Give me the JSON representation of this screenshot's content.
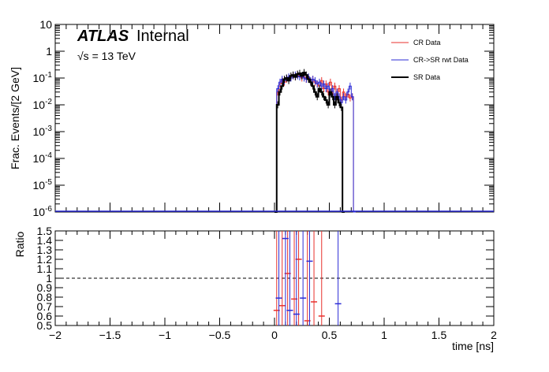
{
  "chart_data": [
    {
      "type": "line",
      "panel": "main",
      "ylabel": "Frac. Events/[2 GeV]",
      "yscale": "log",
      "ylim": [
        1e-06,
        10
      ],
      "xlim": [
        -2,
        2
      ],
      "yticks": [
        {
          "b": "10",
          "e": "-6",
          "v": 1e-06
        },
        {
          "b": "10",
          "e": "-5",
          "v": 1e-05
        },
        {
          "b": "10",
          "e": "-4",
          "v": 0.0001
        },
        {
          "b": "10",
          "e": "-3",
          "v": 0.001
        },
        {
          "b": "10",
          "e": "-2",
          "v": 0.01
        },
        {
          "b": "10",
          "e": "-1",
          "v": 0.1
        },
        {
          "b": "1",
          "e": "",
          "v": 1
        },
        {
          "b": "10",
          "e": "",
          "v": 10
        }
      ],
      "atlas_label": "ATLAS",
      "atlas_sub": "Internal",
      "energy_sqrt": "√s",
      "energy_rest": " = 13 TeV",
      "legend": [
        {
          "label": "CR Data",
          "color": "#e8302c"
        },
        {
          "label": "CR->SR rwt Data",
          "color": "#2b2bd6"
        },
        {
          "label": "SR Data",
          "color": "#000000"
        }
      ],
      "series": [
        {
          "name": "CR Data",
          "color": "#e8302c",
          "x": [
            0.0,
            0.02,
            0.04,
            0.06,
            0.08,
            0.1,
            0.12,
            0.14,
            0.16,
            0.18,
            0.2,
            0.22,
            0.24,
            0.26,
            0.28,
            0.3,
            0.32,
            0.34,
            0.36,
            0.38,
            0.4,
            0.42,
            0.44,
            0.46,
            0.48,
            0.5,
            0.52,
            0.54,
            0.56,
            0.58,
            0.6,
            0.62,
            0.64,
            0.66,
            0.68,
            0.7,
            0.72
          ],
          "y": [
            1e-06,
            0.03,
            0.06,
            0.08,
            0.07,
            0.09,
            0.1,
            0.11,
            0.12,
            0.11,
            0.13,
            0.12,
            0.1,
            0.11,
            0.09,
            0.1,
            0.08,
            0.09,
            0.07,
            0.06,
            0.05,
            0.08,
            0.04,
            0.06,
            0.03,
            0.07,
            0.025,
            0.05,
            0.02,
            0.04,
            0.015,
            0.03,
            0.02,
            0.025,
            0.018,
            0.02,
            1e-06
          ]
        },
        {
          "name": "CR->SR rwt Data",
          "color": "#2b2bd6",
          "x": [
            0.0,
            0.02,
            0.04,
            0.06,
            0.08,
            0.1,
            0.12,
            0.14,
            0.16,
            0.18,
            0.2,
            0.22,
            0.24,
            0.26,
            0.28,
            0.3,
            0.32,
            0.34,
            0.36,
            0.38,
            0.4,
            0.42,
            0.44,
            0.46,
            0.48,
            0.5,
            0.52,
            0.54,
            0.56,
            0.58,
            0.6,
            0.62,
            0.64,
            0.66,
            0.68,
            0.7,
            0.72
          ],
          "y": [
            1e-06,
            0.04,
            0.07,
            0.09,
            0.08,
            0.1,
            0.11,
            0.1,
            0.12,
            0.13,
            0.12,
            0.11,
            0.12,
            0.1,
            0.09,
            0.11,
            0.08,
            0.09,
            0.08,
            0.06,
            0.07,
            0.05,
            0.06,
            0.04,
            0.05,
            0.03,
            0.04,
            0.02,
            0.03,
            0.02,
            0.012,
            0.02,
            0.015,
            0.03,
            0.05,
            0.02,
            1e-06
          ]
        },
        {
          "name": "SR Data",
          "color": "#000000",
          "x": [
            0.0,
            0.02,
            0.04,
            0.06,
            0.08,
            0.1,
            0.12,
            0.14,
            0.16,
            0.18,
            0.2,
            0.22,
            0.24,
            0.26,
            0.28,
            0.3,
            0.32,
            0.34,
            0.36,
            0.38,
            0.4,
            0.42,
            0.44,
            0.46,
            0.48,
            0.5,
            0.52,
            0.54,
            0.56,
            0.58,
            0.6,
            0.62
          ],
          "y": [
            1e-06,
            0.01,
            0.03,
            0.05,
            0.09,
            0.1,
            0.08,
            0.12,
            0.13,
            0.11,
            0.14,
            0.15,
            0.12,
            0.16,
            0.13,
            0.09,
            0.07,
            0.05,
            0.03,
            0.02,
            0.04,
            0.03,
            0.02,
            0.015,
            0.01,
            0.03,
            0.02,
            0.01,
            0.02,
            0.012,
            0.008,
            1e-06
          ]
        }
      ]
    },
    {
      "type": "scatter",
      "panel": "ratio",
      "ylabel": "Ratio",
      "xlabel": "time [ns]",
      "xlim": [
        -2,
        2
      ],
      "ylim": [
        0.5,
        1.5
      ],
      "reference_line": 1,
      "xticks": [
        "−2",
        "−1.5",
        "−1",
        "−0.5",
        "0",
        "0.5",
        "1",
        "1.5",
        "2"
      ],
      "xtick_values": [
        -2,
        -1.5,
        -1,
        -0.5,
        0,
        0.5,
        1,
        1.5,
        2
      ],
      "yticks": [
        "0.5",
        "0.6",
        "0.7",
        "0.8",
        "0.9",
        "1",
        "1.1",
        "1.2",
        "1.3",
        "1.4",
        "1.5"
      ],
      "ytick_values": [
        0.5,
        0.6,
        0.7,
        0.8,
        0.9,
        1.0,
        1.1,
        1.2,
        1.3,
        1.4,
        1.5
      ],
      "series": [
        {
          "name": "CR Data",
          "color": "#e8302c",
          "x": [
            0.02,
            0.07,
            0.12,
            0.18,
            0.22,
            0.3,
            0.36,
            0.43
          ],
          "y": [
            0.66,
            0.71,
            1.05,
            0.78,
            1.2,
            0.55,
            0.75,
            0.6
          ]
        },
        {
          "name": "CR->SR rwt Data",
          "color": "#2b2bd6",
          "x": [
            0.04,
            0.1,
            0.14,
            0.2,
            0.26,
            0.32,
            0.58
          ],
          "y": [
            0.79,
            1.42,
            0.66,
            0.62,
            0.79,
            1.18,
            0.73
          ]
        }
      ]
    }
  ]
}
